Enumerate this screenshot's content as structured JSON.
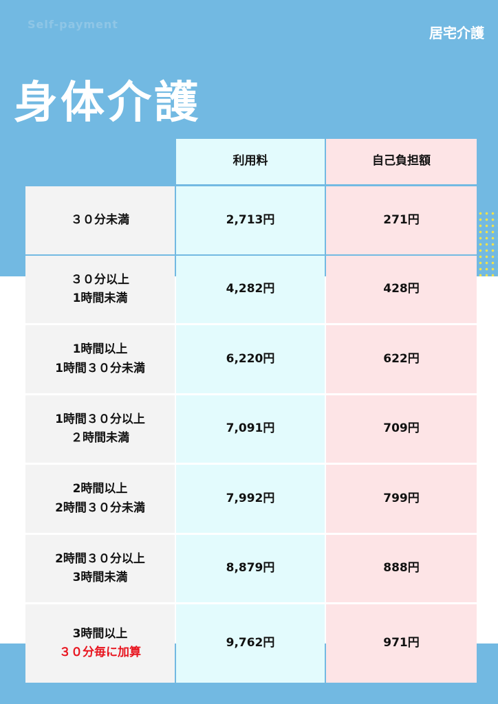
{
  "header": {
    "subtitle": "Self-payment",
    "category": "居宅介護",
    "title": "身体介護"
  },
  "table": {
    "columns": [
      "利用料",
      "自己負担額"
    ],
    "rows": [
      {
        "label": [
          "３０分未満"
        ],
        "fee": "2,713円",
        "copay": "271円"
      },
      {
        "label": [
          "３０分以上",
          "1時間未満"
        ],
        "fee": "4,282円",
        "copay": "428円"
      },
      {
        "label": [
          "1時間以上",
          "1時間３０分未満"
        ],
        "fee": "6,220円",
        "copay": "622円"
      },
      {
        "label": [
          "1時間３０分以上",
          "２時間未満"
        ],
        "fee": "7,091円",
        "copay": "709円"
      },
      {
        "label": [
          "2時間以上",
          "2時間３０分未満"
        ],
        "fee": "7,992円",
        "copay": "799円"
      },
      {
        "label": [
          "2時間３０分以上",
          "3時間未満"
        ],
        "fee": "8,879円",
        "copay": "888円"
      },
      {
        "label": [
          "3時間以上"
        ],
        "note": "３０分毎に加算",
        "fee": "9,762円",
        "copay": "971円"
      }
    ]
  }
}
